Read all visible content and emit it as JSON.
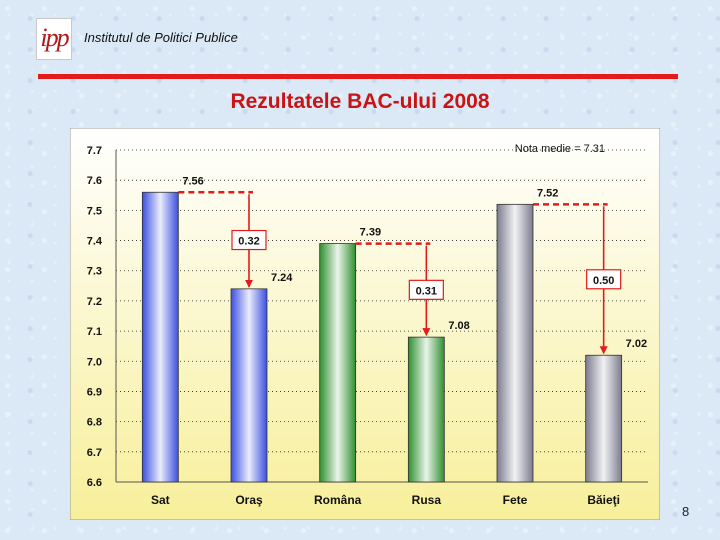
{
  "header": {
    "logo_text": "ipp",
    "organization": "Institutul de Politici Publice"
  },
  "slide": {
    "title": "Rezultatele BAC-ului 2008",
    "page_number": "8"
  },
  "colors": {
    "accent_red": "#e31b1b",
    "title_red": "#c81414",
    "plot_bg_top": "#ffffff",
    "plot_bg_bottom": "#f7ef9a",
    "bar_blue": "#3b4fe0",
    "bar_green": "#2f8f2f",
    "bar_gray": "#7b7b8f"
  },
  "chart_data": {
    "type": "bar",
    "categories": [
      "Sat",
      "Oraş",
      "Româna",
      "Rusa",
      "Fete",
      "Băieţi"
    ],
    "values": [
      7.56,
      7.24,
      7.39,
      7.08,
      7.52,
      7.02
    ],
    "value_labels": [
      "7.56",
      "7.24",
      "7.39",
      "7.08",
      "7.52",
      "7.02"
    ],
    "bar_colors": [
      "bar_blue",
      "bar_blue",
      "bar_green",
      "bar_green",
      "bar_gray",
      "bar_gray"
    ],
    "ylim": [
      6.6,
      7.7
    ],
    "yticks": [
      "6.6",
      "6.7",
      "6.8",
      "6.9",
      "7.0",
      "7.1",
      "7.2",
      "7.3",
      "7.4",
      "7.5",
      "7.6",
      "7.7"
    ],
    "grid": true,
    "legend": "none",
    "annotation": "Nota medie = 7.31",
    "differences": [
      {
        "from": 0,
        "to": 1,
        "value": 0.32,
        "label": "0.32"
      },
      {
        "from": 2,
        "to": 3,
        "value": 0.31,
        "label": "0.31"
      },
      {
        "from": 4,
        "to": 5,
        "value": 0.5,
        "label": "0.50"
      }
    ]
  }
}
